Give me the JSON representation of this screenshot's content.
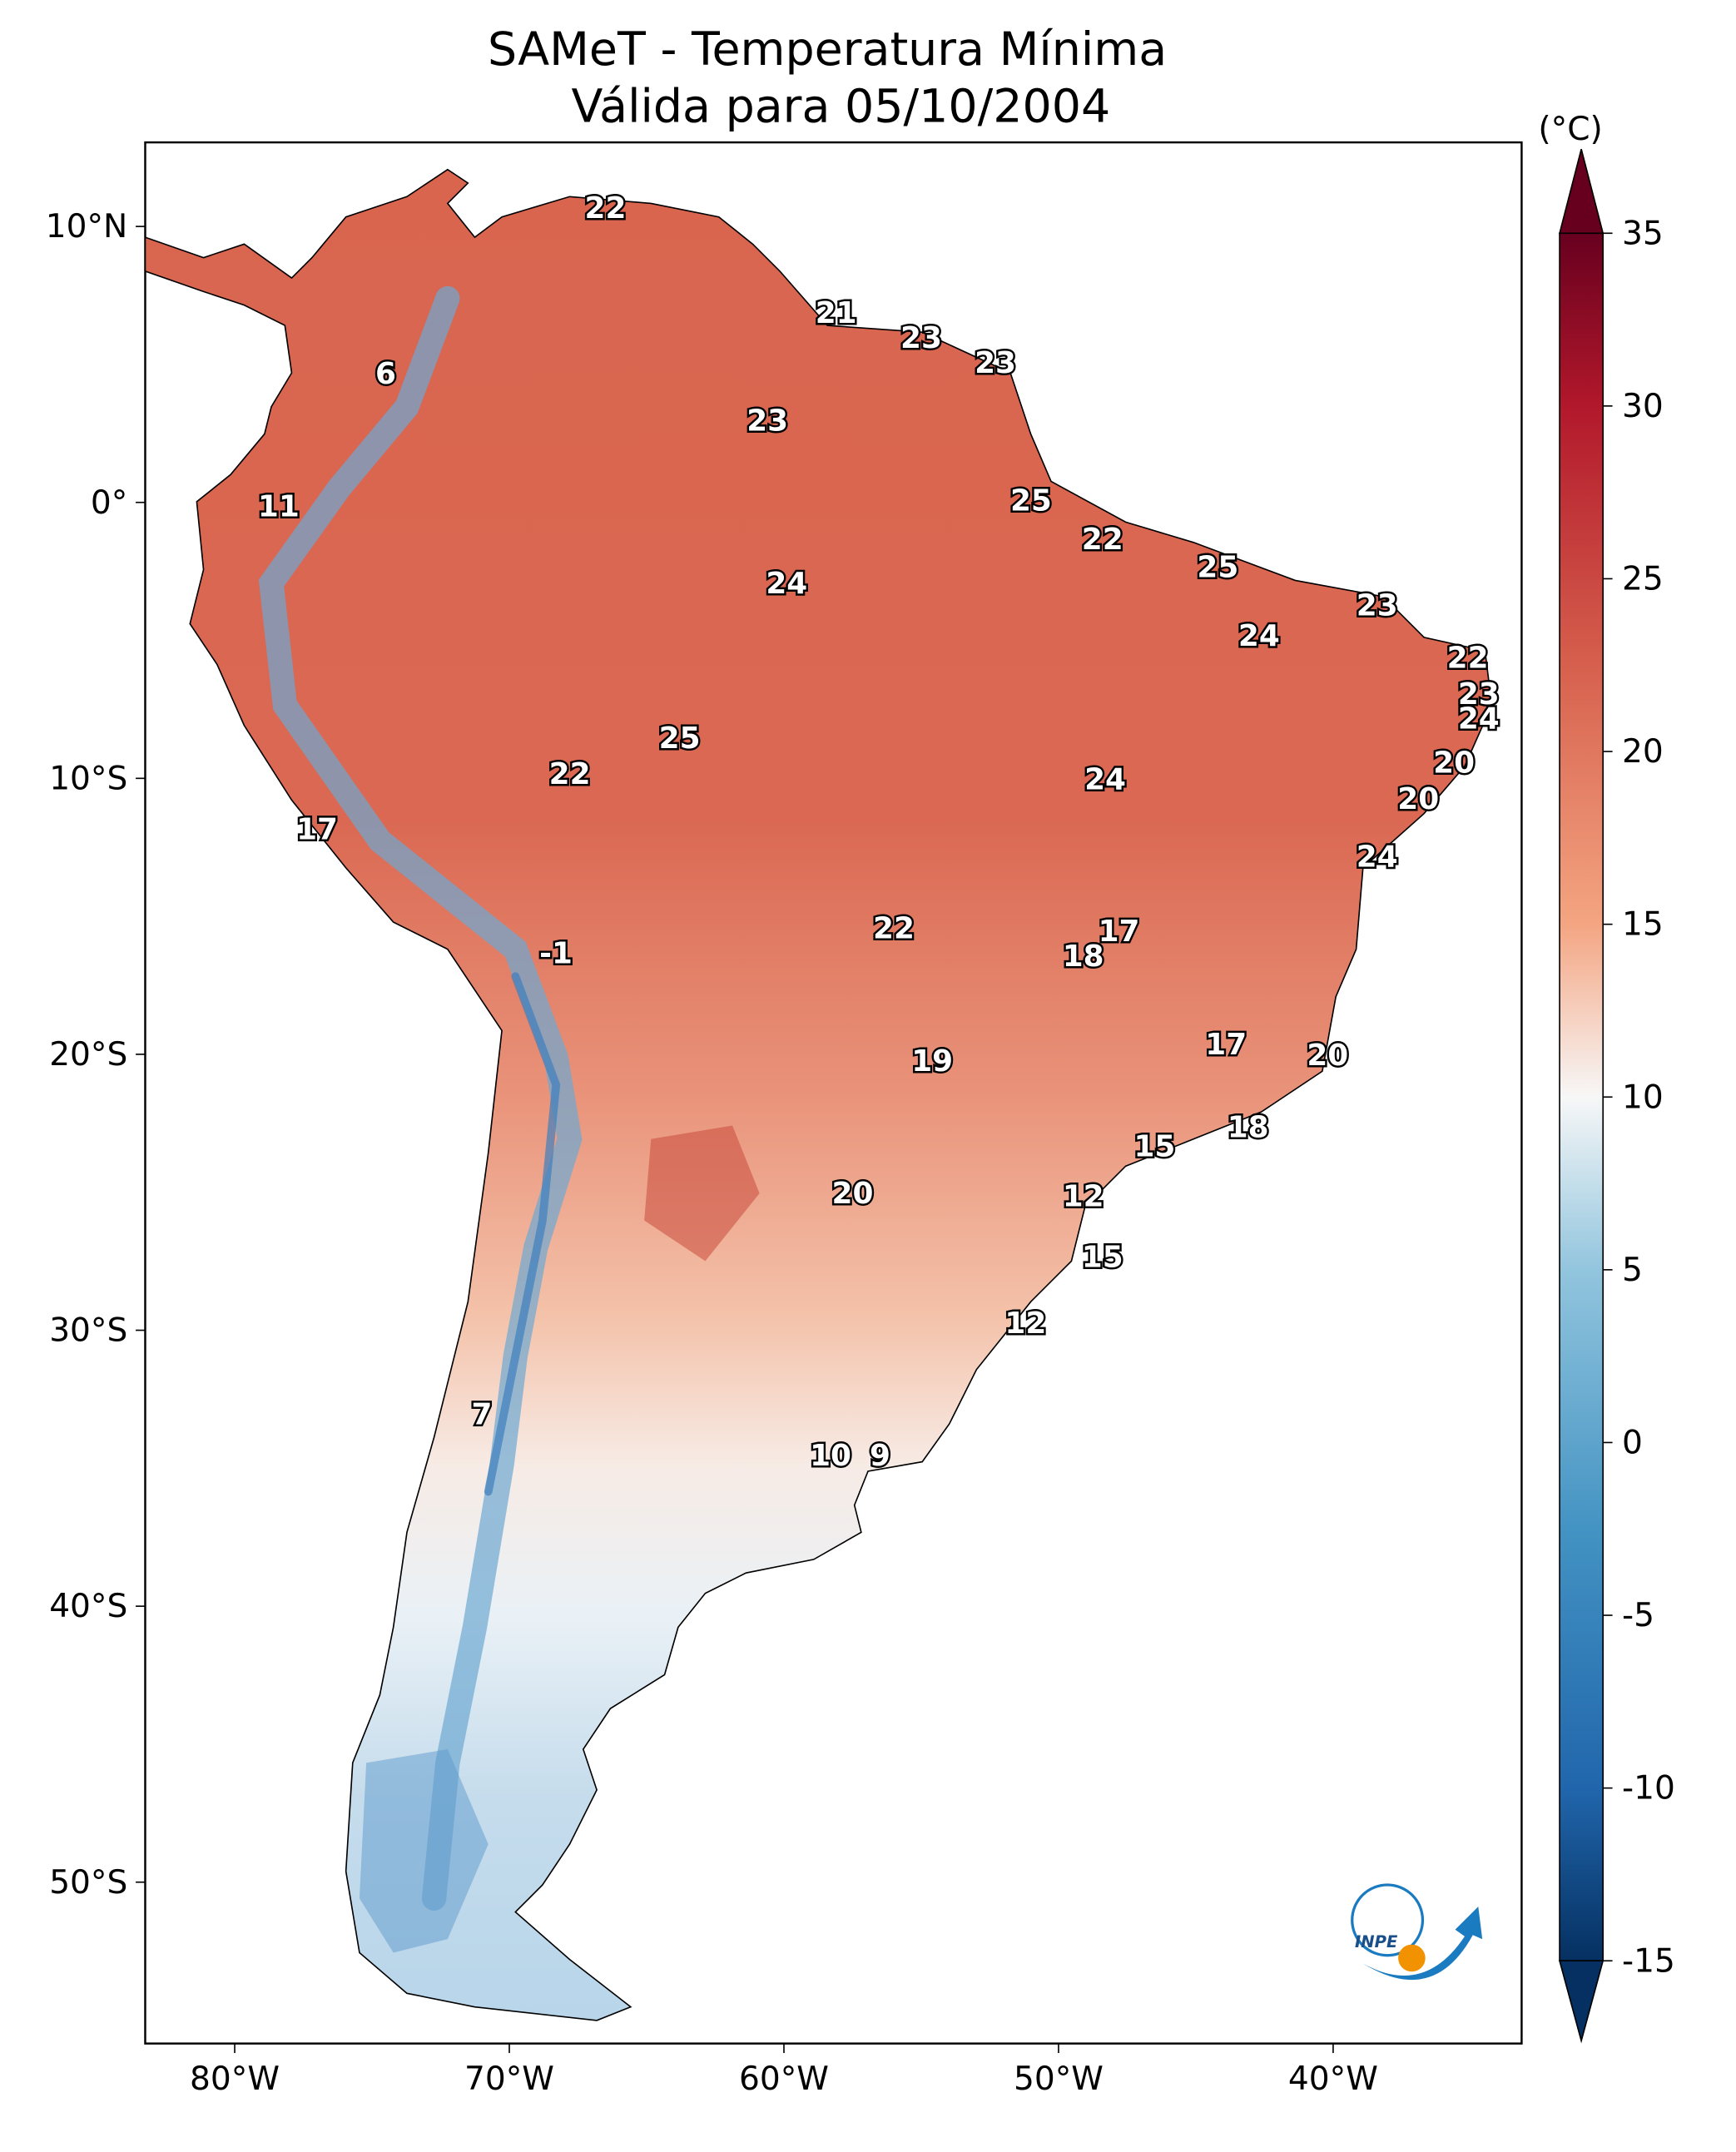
{
  "title": {
    "line1": "SAMeT - Temperatura Mínima",
    "line2": "Válida para 05/10/2004"
  },
  "map": {
    "lon_range": [
      -83.3,
      -33.1
    ],
    "lat_range": [
      -55.9,
      13.0
    ],
    "lon_ticks": [
      {
        "value": -80,
        "label": "80°W"
      },
      {
        "value": -70,
        "label": "70°W"
      },
      {
        "value": -60,
        "label": "60°W"
      },
      {
        "value": -50,
        "label": "50°W"
      },
      {
        "value": -40,
        "label": "40°W"
      }
    ],
    "lat_ticks": [
      {
        "value": 10,
        "label": "10°N"
      },
      {
        "value": 0,
        "label": "0°"
      },
      {
        "value": -10,
        "label": "10°S"
      },
      {
        "value": -20,
        "label": "20°S"
      },
      {
        "value": -30,
        "label": "30°S"
      },
      {
        "value": -40,
        "label": "40°S"
      },
      {
        "value": -50,
        "label": "50°S"
      }
    ],
    "stations": [
      {
        "value": "22",
        "lon": -66.5,
        "lat": 10.6
      },
      {
        "value": "21",
        "lon": -58.1,
        "lat": 6.8
      },
      {
        "value": "23",
        "lon": -55.0,
        "lat": 5.9
      },
      {
        "value": "23",
        "lon": -52.3,
        "lat": 5.0
      },
      {
        "value": "6",
        "lon": -74.5,
        "lat": 4.6
      },
      {
        "value": "23",
        "lon": -60.6,
        "lat": 2.9
      },
      {
        "value": "11",
        "lon": -78.4,
        "lat": -0.2
      },
      {
        "value": "25",
        "lon": -51.0,
        "lat": 0.0
      },
      {
        "value": "22",
        "lon": -48.4,
        "lat": -1.4
      },
      {
        "value": "25",
        "lon": -44.2,
        "lat": -2.4
      },
      {
        "value": "24",
        "lon": -59.9,
        "lat": -3.0
      },
      {
        "value": "23",
        "lon": -38.4,
        "lat": -3.8
      },
      {
        "value": "24",
        "lon": -42.7,
        "lat": -4.9
      },
      {
        "value": "22",
        "lon": -35.1,
        "lat": -5.7
      },
      {
        "value": "23",
        "lon": -34.7,
        "lat": -7.0
      },
      {
        "value": "24",
        "lon": -34.7,
        "lat": -7.9
      },
      {
        "value": "25",
        "lon": -63.8,
        "lat": -8.6
      },
      {
        "value": "20",
        "lon": -35.6,
        "lat": -9.5
      },
      {
        "value": "22",
        "lon": -67.8,
        "lat": -9.9
      },
      {
        "value": "24",
        "lon": -48.3,
        "lat": -10.1
      },
      {
        "value": "20",
        "lon": -36.9,
        "lat": -10.8
      },
      {
        "value": "17",
        "lon": -77.0,
        "lat": -11.9
      },
      {
        "value": "24",
        "lon": -38.4,
        "lat": -12.9
      },
      {
        "value": "22",
        "lon": -56.0,
        "lat": -15.5
      },
      {
        "value": "17",
        "lon": -47.8,
        "lat": -15.6
      },
      {
        "value": "18",
        "lon": -49.1,
        "lat": -16.5
      },
      {
        "value": "-1",
        "lon": -68.3,
        "lat": -16.4
      },
      {
        "value": "17",
        "lon": -43.9,
        "lat": -19.7
      },
      {
        "value": "19",
        "lon": -54.6,
        "lat": -20.3
      },
      {
        "value": "20",
        "lon": -40.2,
        "lat": -20.1
      },
      {
        "value": "18",
        "lon": -43.1,
        "lat": -22.7
      },
      {
        "value": "15",
        "lon": -46.5,
        "lat": -23.4
      },
      {
        "value": "12",
        "lon": -49.1,
        "lat": -25.2
      },
      {
        "value": "20",
        "lon": -57.5,
        "lat": -25.1
      },
      {
        "value": "15",
        "lon": -48.4,
        "lat": -27.4
      },
      {
        "value": "12",
        "lon": -51.2,
        "lat": -29.8
      },
      {
        "value": "7",
        "lon": -71.0,
        "lat": -33.1
      },
      {
        "value": "10",
        "lon": -58.3,
        "lat": -34.6
      },
      {
        "value": "9",
        "lon": -56.5,
        "lat": -34.6
      }
    ]
  },
  "colorbar": {
    "unit": "(°C)",
    "colormap": "RdBu_r",
    "range": [
      -15,
      35
    ],
    "extend": "both",
    "ticks": [
      "35",
      "30",
      "25",
      "20",
      "15",
      "10",
      "5",
      "0",
      "-5",
      "-10",
      "-15"
    ],
    "colors": {
      "min": "#053061",
      "low": "#4393c3",
      "mid": "#f7f7f7",
      "high": "#d6604d",
      "max": "#67001f"
    }
  },
  "logo": {
    "text": "INPE",
    "colors": {
      "blue": "#1a7bc0",
      "orange": "#f39200"
    }
  }
}
